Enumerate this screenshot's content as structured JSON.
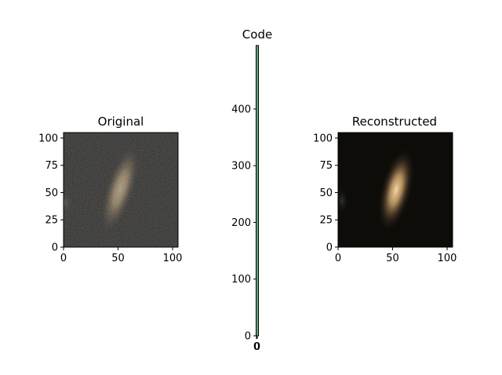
{
  "chart_data": [
    {
      "type": "heatmap",
      "title": "Original",
      "xticks": [
        "0",
        "50",
        "100"
      ],
      "yticks": [
        "0",
        "25",
        "50",
        "75",
        "100"
      ],
      "xlim": [
        0,
        105
      ],
      "ylim": [
        105,
        0
      ],
      "blob_center": [
        52,
        52
      ],
      "image_style": "noisy"
    },
    {
      "type": "heatmap",
      "title": "Code",
      "xticks": [
        "0",
        "0"
      ],
      "yticks": [
        "0",
        "100",
        "200",
        "300",
        "400"
      ],
      "xlim": [
        0,
        1
      ],
      "ylim": [
        512,
        0
      ],
      "colors": {
        "strip": "#2e8b57",
        "strip_light": "#b0e0c8"
      }
    },
    {
      "type": "heatmap",
      "title": "Reconstructed",
      "xticks": [
        "0",
        "50",
        "100"
      ],
      "yticks": [
        "0",
        "25",
        "50",
        "75",
        "100"
      ],
      "xlim": [
        0,
        105
      ],
      "ylim": [
        105,
        0
      ],
      "blob_center": [
        54,
        52
      ],
      "image_style": "smooth"
    }
  ]
}
